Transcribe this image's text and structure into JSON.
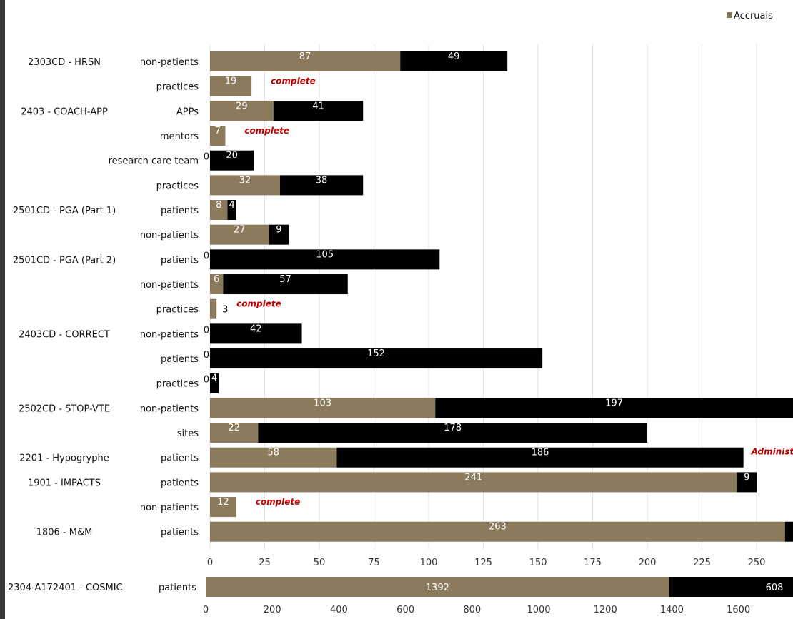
{
  "chart_data": [
    {
      "type": "bar",
      "stacked": true,
      "orientation": "horizontal",
      "xlim": [
        0,
        270
      ],
      "x_ticks": [
        0,
        25,
        50,
        75,
        100,
        125,
        150,
        175,
        200,
        225,
        250
      ],
      "grid": "vertical",
      "legend": {
        "placement": "top-right",
        "entries": [
          {
            "name": "Accruals",
            "color": "#8b7b5c"
          }
        ]
      },
      "colors": {
        "accrued": "#8b7b5c",
        "remaining": "#000000",
        "note": "#c00000"
      },
      "rows": [
        {
          "study": "2303CD - HRSN",
          "category": "non-patients",
          "accrued": 87,
          "remaining": 49,
          "accrued_label": "87",
          "remaining_label": "49",
          "note": ""
        },
        {
          "study": "",
          "category": "practices",
          "accrued": 19,
          "remaining": 0,
          "accrued_label": "19",
          "remaining_label": "",
          "note": "complete"
        },
        {
          "study": "2403 - COACH-APP",
          "category": "APPs",
          "accrued": 29,
          "remaining": 41,
          "accrued_label": "29",
          "remaining_label": "41",
          "note": ""
        },
        {
          "study": "",
          "category": "mentors",
          "accrued": 7,
          "remaining": 0,
          "accrued_label": "7",
          "remaining_label": "",
          "note": "complete"
        },
        {
          "study": "",
          "category": "research care team",
          "accrued": 0,
          "remaining": 20,
          "accrued_label": "0",
          "remaining_label": "20",
          "note": ""
        },
        {
          "study": "",
          "category": "practices",
          "accrued": 32,
          "remaining": 38,
          "accrued_label": "32",
          "remaining_label": "38",
          "note": ""
        },
        {
          "study": "2501CD - PGA (Part 1)",
          "category": "patients",
          "accrued": 8,
          "remaining": 4,
          "accrued_label": "8",
          "remaining_label": "4",
          "note": ""
        },
        {
          "study": "",
          "category": "non-patients",
          "accrued": 27,
          "remaining": 9,
          "accrued_label": "27",
          "remaining_label": "9",
          "note": ""
        },
        {
          "study": "2501CD - PGA (Part 2)",
          "category": "patients",
          "accrued": 0,
          "remaining": 105,
          "accrued_label": "0",
          "remaining_label": "105",
          "note": ""
        },
        {
          "study": "",
          "category": "non-patients",
          "accrued": 6,
          "remaining": 57,
          "accrued_label": "6",
          "remaining_label": "57",
          "note": ""
        },
        {
          "study": "",
          "category": "practices",
          "accrued": 3,
          "remaining": 0,
          "accrued_label": "3",
          "remaining_label": "",
          "note": "complete"
        },
        {
          "study": "2403CD - CORRECT",
          "category": "non-patients",
          "accrued": 0,
          "remaining": 42,
          "accrued_label": "0",
          "remaining_label": "42",
          "note": ""
        },
        {
          "study": "",
          "category": "patients",
          "accrued": 0,
          "remaining": 152,
          "accrued_label": "0",
          "remaining_label": "152",
          "note": ""
        },
        {
          "study": "",
          "category": "practices",
          "accrued": 0,
          "remaining": 4,
          "accrued_label": "0",
          "remaining_label": "4",
          "note": ""
        },
        {
          "study": "2502CD - STOP-VTE",
          "category": "non-patients",
          "accrued": 103,
          "remaining": 197,
          "accrued_label": "103",
          "remaining_label": "197",
          "note": ""
        },
        {
          "study": "",
          "category": "sites",
          "accrued": 22,
          "remaining": 178,
          "accrued_label": "22",
          "remaining_label": "178",
          "note": ""
        },
        {
          "study": "2201 - Hypogryphe",
          "category": "patients",
          "accrued": 58,
          "remaining": 186,
          "accrued_label": "58",
          "remaining_label": "186",
          "note": "Administ"
        },
        {
          "study": "1901 - IMPACTS",
          "category": "patients",
          "accrued": 241,
          "remaining": 9,
          "accrued_label": "241",
          "remaining_label": "9",
          "note": ""
        },
        {
          "study": "",
          "category": "non-patients",
          "accrued": 12,
          "remaining": 0,
          "accrued_label": "12",
          "remaining_label": "",
          "note": "complete"
        },
        {
          "study": "1806 - M&M",
          "category": "patients",
          "accrued": 263,
          "remaining": 10,
          "accrued_label": "263",
          "remaining_label": "",
          "note": ""
        }
      ]
    },
    {
      "type": "bar",
      "stacked": true,
      "orientation": "horizontal",
      "xlim": [
        0,
        1800
      ],
      "x_ticks": [
        0,
        200,
        400,
        600,
        800,
        1000,
        1200,
        1400,
        1600
      ],
      "rows": [
        {
          "study": "2304-A172401 - COSMIC",
          "category": "patients",
          "accrued": 1392,
          "remaining": 608,
          "accrued_label": "1392",
          "remaining_label": "608",
          "note": ""
        }
      ]
    }
  ]
}
